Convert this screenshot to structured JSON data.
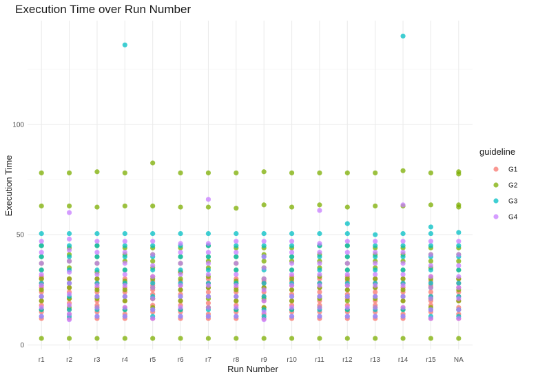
{
  "chart_data": {
    "type": "scatter",
    "title": "Execution Time over Run Number",
    "xlabel": "Run Number",
    "ylabel": "Execution Time",
    "categories": [
      "r1",
      "r2",
      "r3",
      "r4",
      "r5",
      "r6",
      "r7",
      "r8",
      "r9",
      "r10",
      "r11",
      "r12",
      "r13",
      "r14",
      "r15",
      "NA"
    ],
    "ylim": [
      -2,
      147
    ],
    "yticks": [
      0,
      50,
      100
    ],
    "grid": true,
    "legend": {
      "title": "guideline",
      "position": "right"
    },
    "series": [
      {
        "name": "G1",
        "color": "#F8766D",
        "values": [
          [
            12,
            15,
            18,
            20,
            22,
            24,
            26,
            27,
            28,
            30,
            31
          ],
          [
            12,
            14,
            16,
            19,
            21,
            24,
            26,
            28,
            30
          ],
          [
            12,
            15,
            18,
            20,
            22,
            24,
            26,
            28,
            30
          ],
          [
            12,
            14,
            17,
            20,
            22,
            24,
            26,
            28,
            30
          ],
          [
            12,
            15,
            18,
            21,
            23,
            25,
            27,
            29,
            31
          ],
          [
            12,
            15,
            18,
            20,
            23,
            25,
            27,
            29,
            33
          ],
          [
            12,
            14,
            17,
            19,
            22,
            24,
            26,
            28,
            30
          ],
          [
            12,
            15,
            18,
            20,
            22,
            24,
            26,
            28,
            30
          ],
          [
            12,
            14,
            17,
            20,
            22,
            24,
            26,
            28,
            29
          ],
          [
            12,
            15,
            18,
            20,
            23,
            25,
            27,
            29,
            31
          ],
          [
            12,
            15,
            18,
            20,
            22,
            24,
            26,
            28,
            30
          ],
          [
            12,
            15,
            18,
            21,
            23,
            25,
            27,
            29,
            31
          ],
          [
            12,
            15,
            18,
            20,
            22,
            24,
            26,
            28,
            30
          ],
          [
            12,
            14,
            17,
            20,
            22,
            24,
            26,
            28,
            30
          ],
          [
            12,
            15,
            18,
            20,
            22,
            24,
            27,
            29,
            31
          ],
          [
            12,
            14,
            17,
            20,
            22,
            24,
            26,
            28,
            30
          ]
        ]
      },
      {
        "name": "G2",
        "color": "#7CAE00",
        "values": [
          [
            3,
            16,
            20,
            25,
            30,
            34,
            37,
            40,
            45,
            63,
            78
          ],
          [
            3,
            17,
            21,
            26,
            30,
            35,
            38,
            41,
            44,
            63,
            78
          ],
          [
            3,
            17,
            21,
            25,
            30,
            33,
            37,
            40,
            45,
            62.5,
            78.5
          ],
          [
            3,
            16,
            20,
            25,
            29,
            34,
            38,
            41,
            44,
            63,
            78
          ],
          [
            3,
            17,
            21,
            26,
            30,
            35,
            38,
            41,
            44,
            63,
            82.5
          ],
          [
            3,
            16,
            20,
            25,
            30,
            33,
            37,
            40,
            44,
            62.5,
            78
          ],
          [
            3,
            17,
            21,
            26,
            31,
            35,
            38,
            40,
            45,
            62.5,
            78
          ],
          [
            3,
            16,
            20,
            25,
            29,
            34,
            37,
            40,
            44,
            62,
            78
          ],
          [
            3,
            17,
            21,
            26,
            30,
            35,
            38,
            41,
            44,
            63.5,
            78.5
          ],
          [
            3,
            16,
            20,
            25,
            30,
            34,
            38,
            40,
            44,
            62.5,
            78
          ],
          [
            3,
            17,
            21,
            26,
            31,
            35,
            38,
            41,
            45,
            63.5,
            78
          ],
          [
            3,
            16,
            20,
            25,
            30,
            34,
            37,
            40,
            45,
            62.5,
            78
          ],
          [
            3,
            17,
            21,
            26,
            30,
            35,
            38,
            41,
            44,
            63,
            78
          ],
          [
            3,
            16,
            20,
            25,
            30,
            34,
            38,
            41,
            44,
            63,
            79
          ],
          [
            3,
            17,
            21,
            26,
            30,
            35,
            38,
            41,
            44,
            63.5,
            78
          ],
          [
            3,
            16,
            20,
            25,
            30,
            34,
            38,
            41,
            44,
            62.5,
            63.5,
            77.5,
            78.5
          ]
        ]
      },
      {
        "name": "G3",
        "color": "#00BFC4",
        "values": [
          [
            13,
            16,
            22,
            28,
            34,
            40,
            45,
            50.5
          ],
          [
            13,
            16,
            22,
            28,
            34,
            40,
            45,
            50.5
          ],
          [
            13,
            16,
            22,
            28,
            34,
            40,
            45,
            50.5
          ],
          [
            13,
            16,
            22,
            28,
            34,
            40,
            45,
            50.5,
            136
          ],
          [
            13,
            16,
            22,
            28,
            34,
            40,
            45,
            50.5
          ],
          [
            13,
            16,
            22,
            28,
            34,
            40,
            45,
            50.5
          ],
          [
            13,
            16,
            22,
            28,
            34,
            40,
            45,
            50.5
          ],
          [
            13,
            16,
            22,
            28,
            34,
            40,
            45,
            50.5
          ],
          [
            13,
            16,
            22,
            28,
            34,
            40,
            45,
            50.5
          ],
          [
            13,
            16,
            22,
            28,
            34,
            40,
            45,
            50.5
          ],
          [
            13,
            16,
            22,
            28,
            34,
            40,
            45,
            50.5
          ],
          [
            13,
            16,
            22,
            28,
            34,
            40,
            45,
            50.5,
            55
          ],
          [
            13,
            16,
            22,
            28,
            34,
            40,
            45,
            50
          ],
          [
            13,
            16,
            22,
            28,
            34,
            40,
            45,
            50.5,
            140
          ],
          [
            13,
            16,
            22,
            28,
            34,
            40,
            45,
            50.5,
            53.5
          ],
          [
            13,
            16,
            22,
            28,
            34,
            40,
            45,
            51
          ]
        ]
      },
      {
        "name": "G4",
        "color": "#C77CFF",
        "values": [
          [
            13,
            17,
            22,
            27,
            32,
            37,
            42,
            47
          ],
          [
            11.5,
            14,
            18,
            23,
            28,
            33,
            38,
            43,
            48,
            60
          ],
          [
            13,
            17,
            22,
            27,
            32,
            37,
            42,
            47
          ],
          [
            13,
            17,
            22,
            27,
            32,
            37,
            42,
            47
          ],
          [
            12,
            16,
            21,
            26,
            31,
            36,
            41,
            47
          ],
          [
            13,
            17,
            22,
            27,
            32,
            37,
            42,
            46
          ],
          [
            13,
            17,
            22,
            27,
            32,
            37,
            42,
            46,
            66
          ],
          [
            13,
            17,
            22,
            27,
            32,
            37,
            42,
            47
          ],
          [
            11.5,
            15,
            20,
            25,
            30,
            35,
            40,
            47
          ],
          [
            13,
            17,
            22,
            27,
            32,
            37,
            42,
            47
          ],
          [
            13,
            17,
            22,
            27,
            32,
            37,
            42,
            46,
            61
          ],
          [
            13,
            17,
            22,
            27,
            32,
            37,
            42,
            47
          ],
          [
            13,
            17,
            22,
            27,
            32,
            37,
            42,
            47
          ],
          [
            13,
            17,
            22,
            27,
            32,
            37,
            42,
            47,
            63.5
          ],
          [
            12,
            16,
            21,
            26,
            31,
            36,
            41,
            47
          ],
          [
            12,
            16,
            21,
            26,
            31,
            36,
            41,
            47
          ]
        ]
      }
    ]
  }
}
